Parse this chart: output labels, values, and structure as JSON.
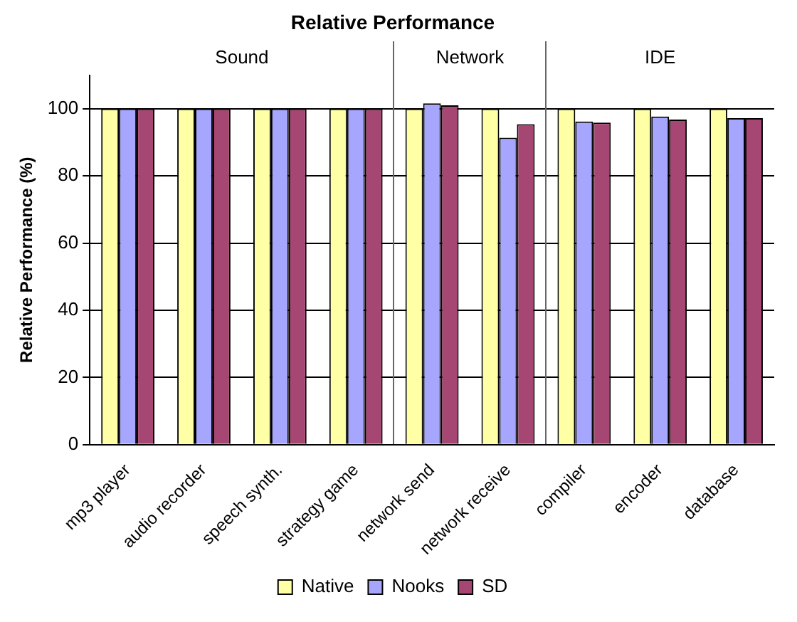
{
  "chart_data": {
    "type": "bar",
    "title": "Relative Performance",
    "ylabel": "Relative Performance (%)",
    "categories": [
      "mp3 player",
      "audio recorder",
      "speech synth.",
      "strategy game",
      "network send",
      "network receive",
      "compiler",
      "encoder",
      "database"
    ],
    "series": [
      {
        "name": "Native",
        "color": "#ffffa6",
        "values": [
          100,
          100,
          100,
          100,
          100,
          100,
          100,
          100,
          100
        ]
      },
      {
        "name": "Nooks",
        "color": "#a6a6ff",
        "values": [
          100,
          100,
          100,
          100,
          101.6,
          91.4,
          96.2,
          97.7,
          97.2
        ]
      },
      {
        "name": "SD",
        "color": "#a64673",
        "values": [
          100,
          100,
          100,
          100,
          101,
          95.4,
          95.9,
          96.8,
          97.2
        ]
      }
    ],
    "annotations": [
      "Sound",
      "Network",
      "IDE"
    ],
    "ylim": [
      0,
      110
    ],
    "yticks": [
      0,
      20,
      40,
      60,
      80,
      100
    ],
    "grid": "y",
    "legend": "bottom"
  }
}
